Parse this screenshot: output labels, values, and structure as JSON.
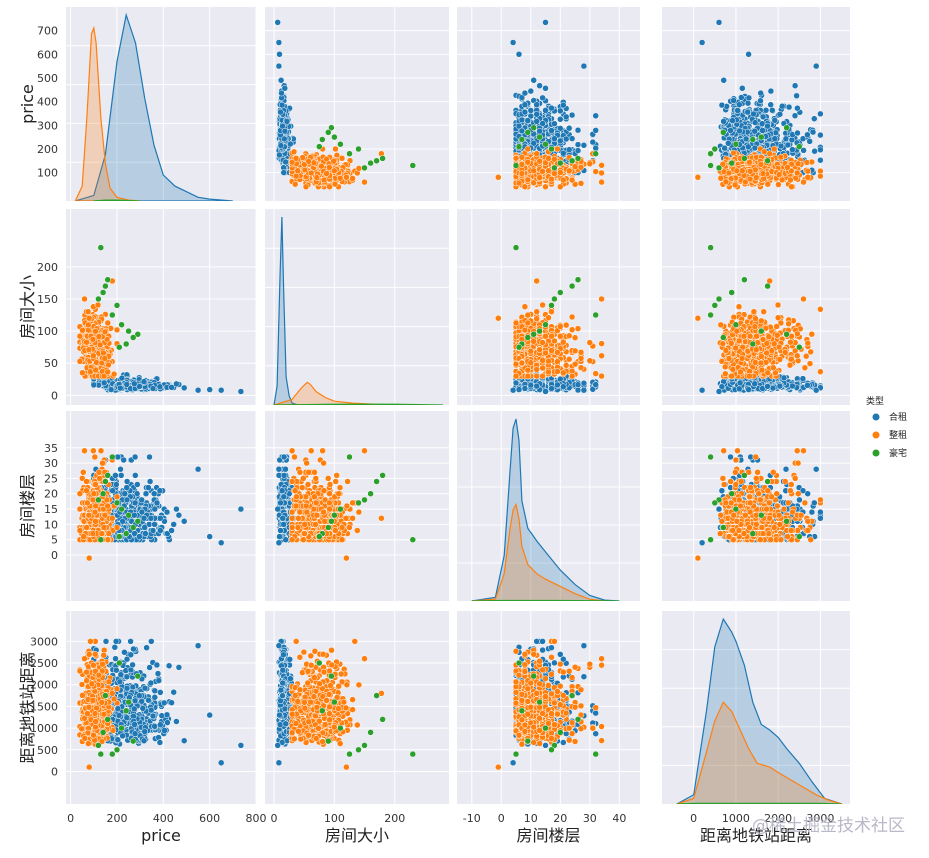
{
  "chart_data": {
    "type": "scatter",
    "subtype": "pairplot",
    "grid": true,
    "legend_position": "right",
    "variables": [
      "price",
      "房间大小",
      "房间楼层",
      "距离地铁站距离"
    ],
    "hue": {
      "title": "类型",
      "categories": [
        {
          "name": "合租",
          "color": "#1f77b4"
        },
        {
          "name": "整租",
          "color": "#ff7f0e"
        },
        {
          "name": "豪宅",
          "color": "#2ca02c"
        }
      ]
    },
    "axes": {
      "price": {
        "range": [
          -20,
          800
        ],
        "ticks": [
          0,
          200,
          400,
          600,
          800
        ]
      },
      "房间大小": {
        "range": [
          -15,
          290
        ],
        "ticks": [
          0,
          100,
          200
        ],
        "pair_ticks": [
          0,
          50,
          100,
          150,
          200
        ]
      },
      "房间楼层": {
        "range": [
          -15,
          47
        ],
        "ticks": [
          -10,
          0,
          10,
          20,
          30,
          40
        ],
        "pair_ticks": [
          0,
          5,
          10,
          15,
          20,
          25,
          30,
          35
        ]
      },
      "距离地铁站距离": {
        "range": [
          -750,
          3700
        ],
        "ticks": [
          0,
          1000,
          2000,
          3000
        ],
        "pair_ticks": [
          0,
          500,
          1000,
          1500,
          2000,
          2500,
          3000
        ]
      }
    },
    "price_pair_ticks": [
      100,
      200,
      300,
      400,
      500,
      600,
      700
    ],
    "diag_density": {
      "price": {
        "合租": {
          "x": [
            20,
            100,
            150,
            200,
            240,
            280,
            320,
            360,
            400,
            450,
            500,
            550,
            600,
            700
          ],
          "y": [
            0,
            0.03,
            0.25,
            0.75,
            1.0,
            0.85,
            0.55,
            0.3,
            0.14,
            0.08,
            0.05,
            0.02,
            0.01,
            0
          ]
        },
        "整租": {
          "x": [
            20,
            50,
            70,
            90,
            100,
            110,
            130,
            150,
            170,
            200,
            250,
            300
          ],
          "y": [
            0,
            0.08,
            0.45,
            0.9,
            0.93,
            0.85,
            0.45,
            0.2,
            0.07,
            0.02,
            0.005,
            0
          ]
        },
        "豪宅": {
          "x": [
            100,
            150,
            200,
            300
          ],
          "y": [
            0,
            0.005,
            0.005,
            0
          ]
        }
      },
      "房间大小": {
        "合租": {
          "x": [
            0,
            5,
            10,
            13,
            16,
            20,
            25,
            30,
            40
          ],
          "y": [
            0,
            0.1,
            0.7,
            1.0,
            0.6,
            0.15,
            0.05,
            0.01,
            0
          ]
        },
        "整租": {
          "x": [
            0,
            30,
            45,
            55,
            60,
            70,
            85,
            100,
            130,
            170,
            220
          ],
          "y": [
            0,
            0.03,
            0.09,
            0.12,
            0.11,
            0.07,
            0.04,
            0.02,
            0.01,
            0.003,
            0
          ]
        },
        "豪宅": {
          "x": [
            0,
            100,
            200,
            280
          ],
          "y": [
            0,
            0.004,
            0.004,
            0
          ]
        }
      },
      "房间楼层": {
        "合租": {
          "x": [
            -10,
            -2,
            1,
            3,
            4,
            5,
            6,
            7,
            9,
            12,
            15,
            20,
            25,
            30,
            35,
            40
          ],
          "y": [
            0,
            0.02,
            0.25,
            0.72,
            0.95,
            1.0,
            0.88,
            0.55,
            0.4,
            0.33,
            0.27,
            0.17,
            0.09,
            0.03,
            0.005,
            0
          ]
        },
        "整租": {
          "x": [
            -10,
            -2,
            1,
            3,
            4,
            5,
            6,
            7,
            9,
            12,
            15,
            20,
            25,
            30,
            35
          ],
          "y": [
            0,
            0.01,
            0.15,
            0.4,
            0.5,
            0.53,
            0.45,
            0.3,
            0.2,
            0.15,
            0.12,
            0.08,
            0.04,
            0.01,
            0
          ]
        },
        "豪宅": {
          "x": [
            -10,
            0,
            20,
            40
          ],
          "y": [
            0,
            0.003,
            0.003,
            0
          ]
        }
      },
      "距离地铁站距离": {
        "合租": {
          "x": [
            -400,
            0,
            300,
            500,
            700,
            900,
            1000,
            1200,
            1400,
            1600,
            1800,
            2000,
            2200,
            2500,
            2800,
            3100,
            3500
          ],
          "y": [
            0,
            0.05,
            0.5,
            0.85,
            1.0,
            0.93,
            0.88,
            0.75,
            0.55,
            0.43,
            0.4,
            0.36,
            0.3,
            0.22,
            0.12,
            0.03,
            0
          ]
        },
        "整租": {
          "x": [
            -400,
            0,
            300,
            500,
            700,
            900,
            1100,
            1300,
            1500,
            1800,
            2000,
            2300,
            2600,
            2900,
            3200,
            3500
          ],
          "y": [
            0,
            0.03,
            0.28,
            0.45,
            0.55,
            0.5,
            0.4,
            0.3,
            0.22,
            0.2,
            0.17,
            0.13,
            0.09,
            0.05,
            0.02,
            0
          ]
        },
        "豪宅": {
          "x": [
            -400,
            0,
            3000,
            3500
          ],
          "y": [
            0,
            0.003,
            0.003,
            0
          ]
        }
      }
    },
    "scatter_clusters": {
      "合租": {
        "price": [
          100,
          700
        ],
        "房间大小": [
          5,
          30
        ],
        "房间楼层": [
          1,
          32
        ],
        "距离地铁站距离": [
          50,
          3000
        ],
        "samples": [
          {
            "price": 735,
            "房间大小": 6,
            "房间楼层": 15,
            "距离地铁站距离": 600
          },
          {
            "price": 650,
            "房间大小": 8,
            "房间楼层": 4,
            "距离地铁站距离": 200
          },
          {
            "price": 600,
            "房间大小": 9,
            "房间楼层": 6,
            "距离地铁站距离": 1300
          },
          {
            "price": 550,
            "房间大小": 8,
            "房间楼层": 28,
            "距离地铁站距离": 2900
          }
        ]
      },
      "整租": {
        "price": [
          40,
          200
        ],
        "房间大小": [
          30,
          160
        ],
        "房间楼层": [
          1,
          34
        ],
        "距离地铁站距离": [
          50,
          3000
        ],
        "samples": [
          {
            "price": 180,
            "房间大小": 178,
            "房间楼层": 12,
            "距离地铁站距离": 1800
          },
          {
            "price": 60,
            "房间大小": 150,
            "房间楼层": 34,
            "距离地铁站距离": 2600
          },
          {
            "price": 80,
            "房间大小": 120,
            "房间楼层": -1,
            "距离地铁站距离": 100
          }
        ]
      },
      "豪宅": {
        "points": [
          {
            "price": 130,
            "房间大小": 230,
            "房间楼层": 5,
            "距离地铁站距离": 400
          },
          {
            "price": 160,
            "房间大小": 180,
            "房间楼层": 26,
            "距离地铁站距离": 1200
          },
          {
            "price": 150,
            "房间大小": 170,
            "房间楼层": 24,
            "距离地铁站距离": 1750
          },
          {
            "price": 140,
            "房间大小": 160,
            "房间楼层": 20,
            "距离地铁站距离": 900
          },
          {
            "price": 120,
            "房间大小": 150,
            "房间楼层": 18,
            "距离地铁站距离": 600
          },
          {
            "price": 200,
            "房间大小": 140,
            "房间楼层": 17,
            "距离地铁站距离": 500
          },
          {
            "price": 180,
            "房间大小": 125,
            "房间楼层": 32,
            "距离地铁站距离": 400
          },
          {
            "price": 220,
            "房间大小": 110,
            "房间楼层": 15,
            "距离地铁站距离": 1000
          },
          {
            "price": 250,
            "房间大小": 100,
            "房间楼层": 13,
            "距离地铁站距离": 1600
          },
          {
            "price": 290,
            "房间大小": 95,
            "房间楼层": 11,
            "距离地铁站距离": 2200
          },
          {
            "price": 270,
            "房间大小": 90,
            "房间楼层": 9,
            "距离地铁站距离": 700
          },
          {
            "price": 240,
            "房间大小": 80,
            "房间楼层": 7,
            "距离地铁站距离": 1400
          },
          {
            "price": 210,
            "房间大小": 75,
            "房间楼层": 6,
            "距离地铁站距离": 2500
          }
        ]
      }
    }
  },
  "watermark": "@稀土掘金技术社区"
}
